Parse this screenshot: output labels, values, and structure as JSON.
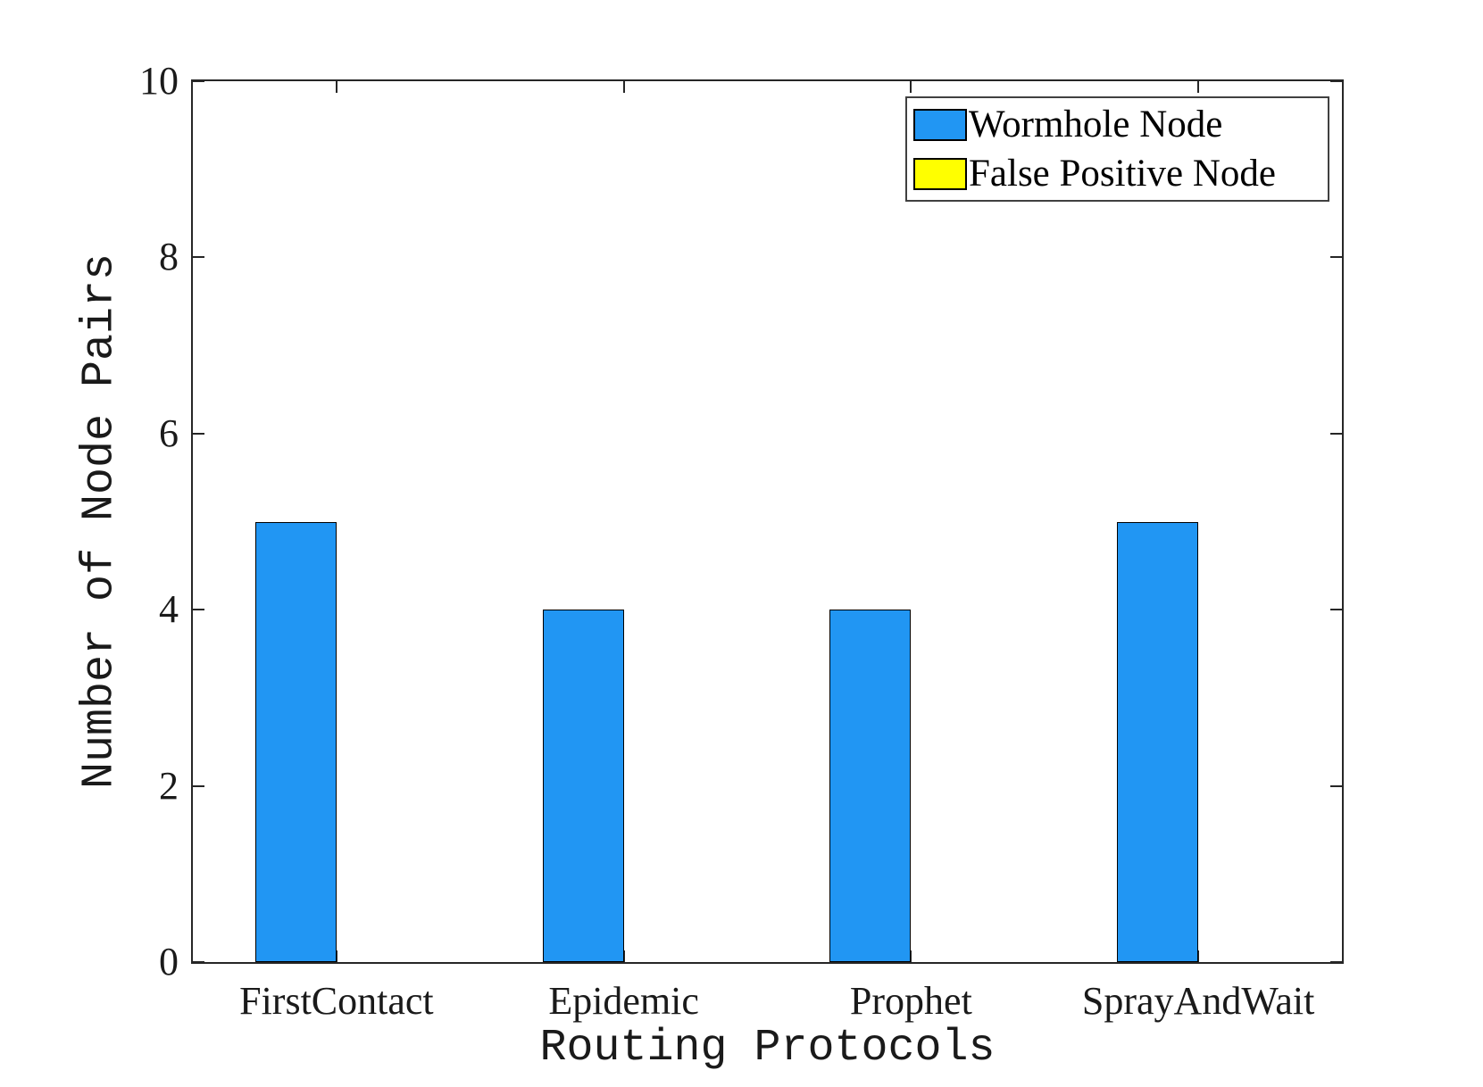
{
  "chart_data": {
    "type": "bar",
    "title": "",
    "categories": [
      "FirstContact",
      "Epidemic",
      "Prophet",
      "SprayAndWait"
    ],
    "series": [
      {
        "name": "Wormhole Node",
        "color": "#2196F3",
        "values": [
          5,
          4,
          4,
          5
        ]
      },
      {
        "name": "False Positive Node",
        "color": "#FFFF00",
        "values": [
          0,
          0,
          0,
          0
        ]
      }
    ],
    "xlabel": "Routing Protocols",
    "ylabel": "Number of Node Pairs",
    "ylim": [
      0,
      10
    ],
    "yticks": [
      0,
      2,
      4,
      6,
      8,
      10
    ],
    "grid": false,
    "legend_position": "top-right",
    "legend_border": true
  },
  "colors": {
    "bar_blue": "#2196F3",
    "bar_yellow": "#FFFF00",
    "axis": "#262626",
    "text": "#1a1a1a",
    "background": "#ffffff",
    "bar_edge": "#000000"
  }
}
